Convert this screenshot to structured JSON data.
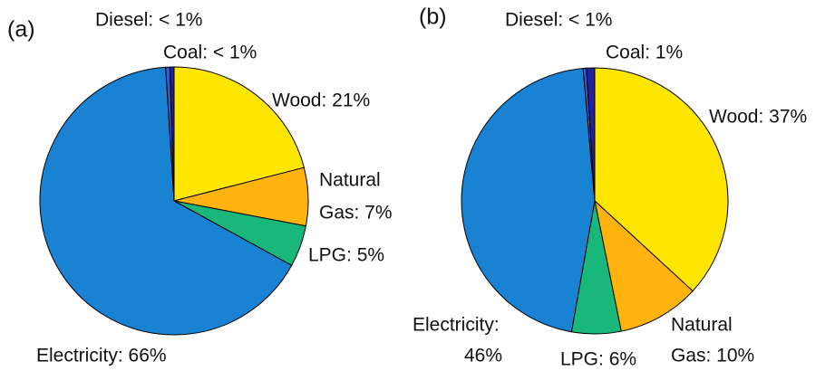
{
  "chart_data": [
    {
      "type": "pie",
      "title": "(a)",
      "values": [
        21,
        7,
        5,
        66,
        0.5,
        0.5
      ],
      "value_labels": [
        [
          "Wood: 21%"
        ],
        [
          "Natural",
          "Gas: 7%"
        ],
        [
          "LPG: 5%"
        ],
        [
          "Electricity: 66%"
        ],
        [
          "Diesel: < 1%"
        ],
        [
          "Coal: < 1%"
        ]
      ],
      "colors": [
        "#ffe600",
        "#ffb30f",
        "#19b87a",
        "#1a82d2",
        "#3a5cc8",
        "#22229e"
      ]
    },
    {
      "type": "pie",
      "title": "(b)",
      "values": [
        37,
        10,
        6,
        46,
        0.4,
        1
      ],
      "value_labels": [
        [
          "Wood: 37%"
        ],
        [
          "Natural",
          "Gas: 10%"
        ],
        [
          "LPG: 6%"
        ],
        [
          "Electricity:",
          "46%"
        ],
        [
          "Diesel: < 1%"
        ],
        [
          "Coal: 1%"
        ]
      ],
      "colors": [
        "#ffe600",
        "#ffb30f",
        "#19b87a",
        "#1a82d2",
        "#3a5cc8",
        "#22229e"
      ]
    }
  ]
}
